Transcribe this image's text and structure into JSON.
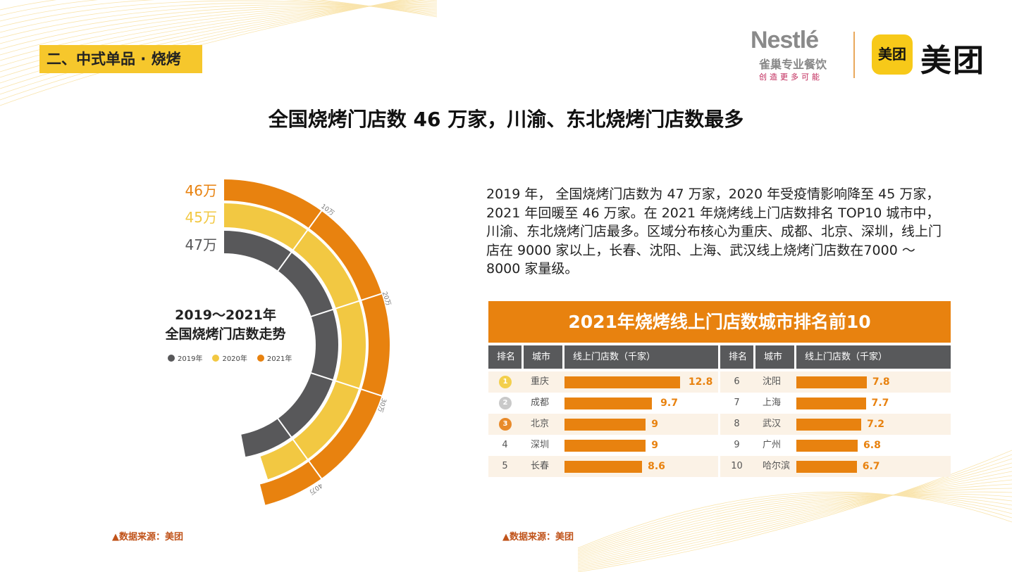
{
  "section_tag": "二、中式单品 · 烧烤",
  "title": "全国烧烤门店数 46 万家，川渝、东北烧烤门店数最多",
  "logos": {
    "nestle_word": "Nestlé",
    "nestle_cn": "雀巢专业餐饮",
    "nestle_slogan": "创造更多可能",
    "meituan_badge": "美团",
    "meituan_word": "美团"
  },
  "paragraph": "2019 年， 全国烧烤门店数为 47 万家，2020 年受疫情影响降至 45 万家，2021 年回暖至 46 万家。在 2021 年烧烤线上门店数排名 TOP10 城市中，川渝、东北烧烤门店最多。区域分布核心为重庆、成都、北京、深圳，线上门店在 9000 家以上，长春、沈阳、上海、武汉线上烧烤门店数在7000 ～ 8000 家量级。",
  "colors": {
    "c2019": "#58585a",
    "c2020": "#f2c842",
    "c2021": "#e8820f"
  },
  "chart_data": {
    "type": "radial-bar",
    "title": "2019～2021年",
    "subtitle": "全国烧烤门店数走势",
    "unit": "万",
    "max": 50,
    "ticks": [
      "10万",
      "20万",
      "30万",
      "40万"
    ],
    "tick_values": [
      10,
      20,
      30,
      40
    ],
    "series": [
      {
        "name": "2021年",
        "value": 46,
        "label": "46万"
      },
      {
        "name": "2020年",
        "value": 45,
        "label": "45万"
      },
      {
        "name": "2019年",
        "value": 47,
        "label": "47万"
      }
    ],
    "legend": [
      "2019年",
      "2020年",
      "2021年"
    ]
  },
  "table": {
    "title": "2021年烧烤线上门店数城市排名前10",
    "headers": [
      "排名",
      "城市",
      "线上门店数（千家）"
    ],
    "rows": [
      {
        "rank": "1",
        "city": "重庆",
        "value": 12.8,
        "label": "12.8"
      },
      {
        "rank": "2",
        "city": "成都",
        "value": 9.7,
        "label": "9.7"
      },
      {
        "rank": "3",
        "city": "北京",
        "value": 9,
        "label": "9"
      },
      {
        "rank": "4",
        "city": "深圳",
        "value": 9,
        "label": "9"
      },
      {
        "rank": "5",
        "city": "长春",
        "value": 8.6,
        "label": "8.6"
      },
      {
        "rank": "6",
        "city": "沈阳",
        "value": 7.8,
        "label": "7.8"
      },
      {
        "rank": "7",
        "city": "上海",
        "value": 7.7,
        "label": "7.7"
      },
      {
        "rank": "8",
        "city": "武汉",
        "value": 7.2,
        "label": "7.2"
      },
      {
        "rank": "9",
        "city": "广州",
        "value": 6.8,
        "label": "6.8"
      },
      {
        "rank": "10",
        "city": "哈尔滨",
        "value": 6.7,
        "label": "6.7"
      }
    ]
  },
  "source_left": "▲数据来源：美团",
  "source_right": "▲数据来源：美团"
}
